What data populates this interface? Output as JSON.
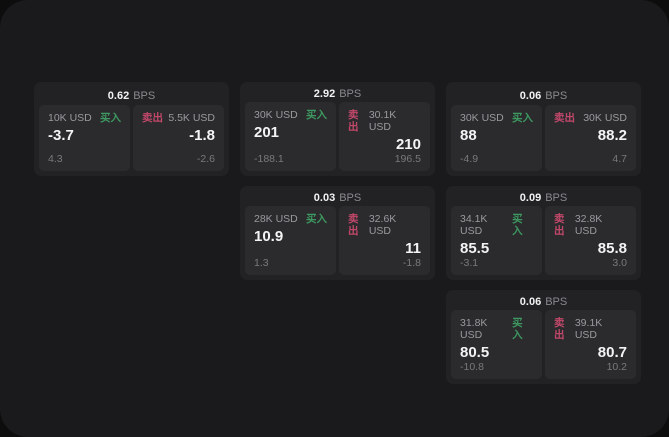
{
  "labels": {
    "bps_unit": "BPS",
    "buy": "买入",
    "sell": "卖出"
  },
  "colors": {
    "page_background": "#1a1a1c",
    "outer_background": "#0d0d0e",
    "card_background": "#222225",
    "tile_background": "#2b2b2e",
    "buy_green": "#3d9960",
    "sell_red": "#c2486a",
    "value_white": "#f4f4f4",
    "label_gray": "#9a9a9e"
  },
  "cards": [
    {
      "grid": {
        "row": 1,
        "col": 1
      },
      "bps": "0.62",
      "buy": {
        "amount": "10K USD",
        "value": "-3.7",
        "change": "4.3"
      },
      "sell": {
        "amount": "5.5K USD",
        "value": "-1.8",
        "change": "-2.6"
      }
    },
    {
      "grid": {
        "row": 1,
        "col": 2
      },
      "bps": "2.92",
      "buy": {
        "amount": "30K USD",
        "value": "201",
        "change": "-188.1"
      },
      "sell": {
        "amount": "30.1K USD",
        "value": "210",
        "change": "196.5"
      }
    },
    {
      "grid": {
        "row": 1,
        "col": 3
      },
      "bps": "0.06",
      "buy": {
        "amount": "30K USD",
        "value": "88",
        "change": "-4.9"
      },
      "sell": {
        "amount": "30K USD",
        "value": "88.2",
        "change": "4.7"
      }
    },
    {
      "grid": {
        "row": 2,
        "col": 2
      },
      "bps": "0.03",
      "buy": {
        "amount": "28K USD",
        "value": "10.9",
        "change": "1.3"
      },
      "sell": {
        "amount": "32.6K USD",
        "value": "11",
        "change": "-1.8"
      }
    },
    {
      "grid": {
        "row": 2,
        "col": 3
      },
      "bps": "0.09",
      "buy": {
        "amount": "34.1K USD",
        "value": "85.5",
        "change": "-3.1"
      },
      "sell": {
        "amount": "32.8K USD",
        "value": "85.8",
        "change": "3.0"
      }
    },
    {
      "grid": {
        "row": 3,
        "col": 3
      },
      "bps": "0.06",
      "buy": {
        "amount": "31.8K USD",
        "value": "80.5",
        "change": "-10.8"
      },
      "sell": {
        "amount": "39.1K USD",
        "value": "80.7",
        "change": "10.2"
      }
    }
  ]
}
